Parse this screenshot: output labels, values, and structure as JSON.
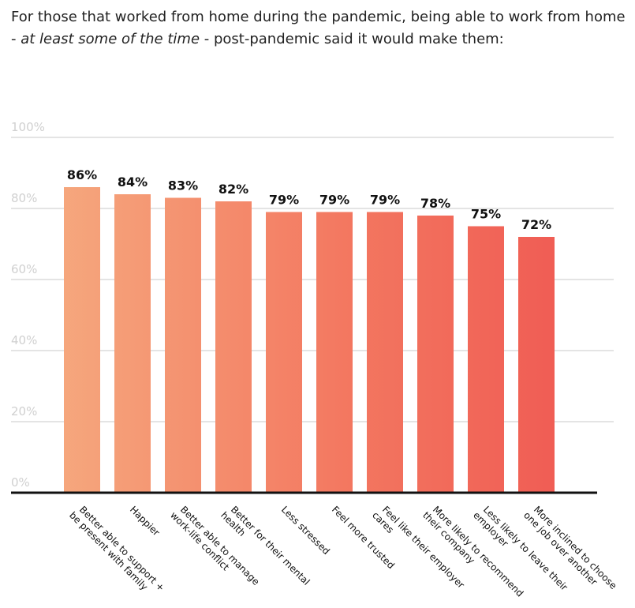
{
  "header": {
    "title_part1": "For those that worked from home during the pandemic, being able to work from home - ",
    "title_emphasis": "at least some of the time",
    "title_part2": " - post-pandemic said it would make them:"
  },
  "colors": {
    "bar_light": "#f6b183",
    "bar_dark": "#ef5350",
    "gridline": "#dcdcdc",
    "axis": "#111111"
  },
  "chart_data": {
    "type": "bar",
    "categories": [
      [
        "Better able to support +",
        "be present with family"
      ],
      [
        "Happier"
      ],
      [
        "Better able to manage",
        "work-life conflict"
      ],
      [
        "Better for their mental",
        "health"
      ],
      [
        "Less stressed"
      ],
      [
        "Feel more trusted"
      ],
      [
        "Feel like their employer",
        "cares"
      ],
      [
        "More likely to recommend",
        "their company"
      ],
      [
        "Less likely to leave their",
        "employer"
      ],
      [
        "More inclined to choose",
        "one job over another"
      ]
    ],
    "values": [
      86,
      84,
      83,
      82,
      79,
      79,
      79,
      78,
      75,
      72
    ],
    "value_labels": [
      "86%",
      "84%",
      "83%",
      "82%",
      "79%",
      "79%",
      "79%",
      "78%",
      "75%",
      "72%"
    ],
    "y_ticks": [
      "0%",
      "20%",
      "40%",
      "60%",
      "80%",
      "100%"
    ],
    "ylim": [
      0,
      100
    ],
    "grid": true
  }
}
